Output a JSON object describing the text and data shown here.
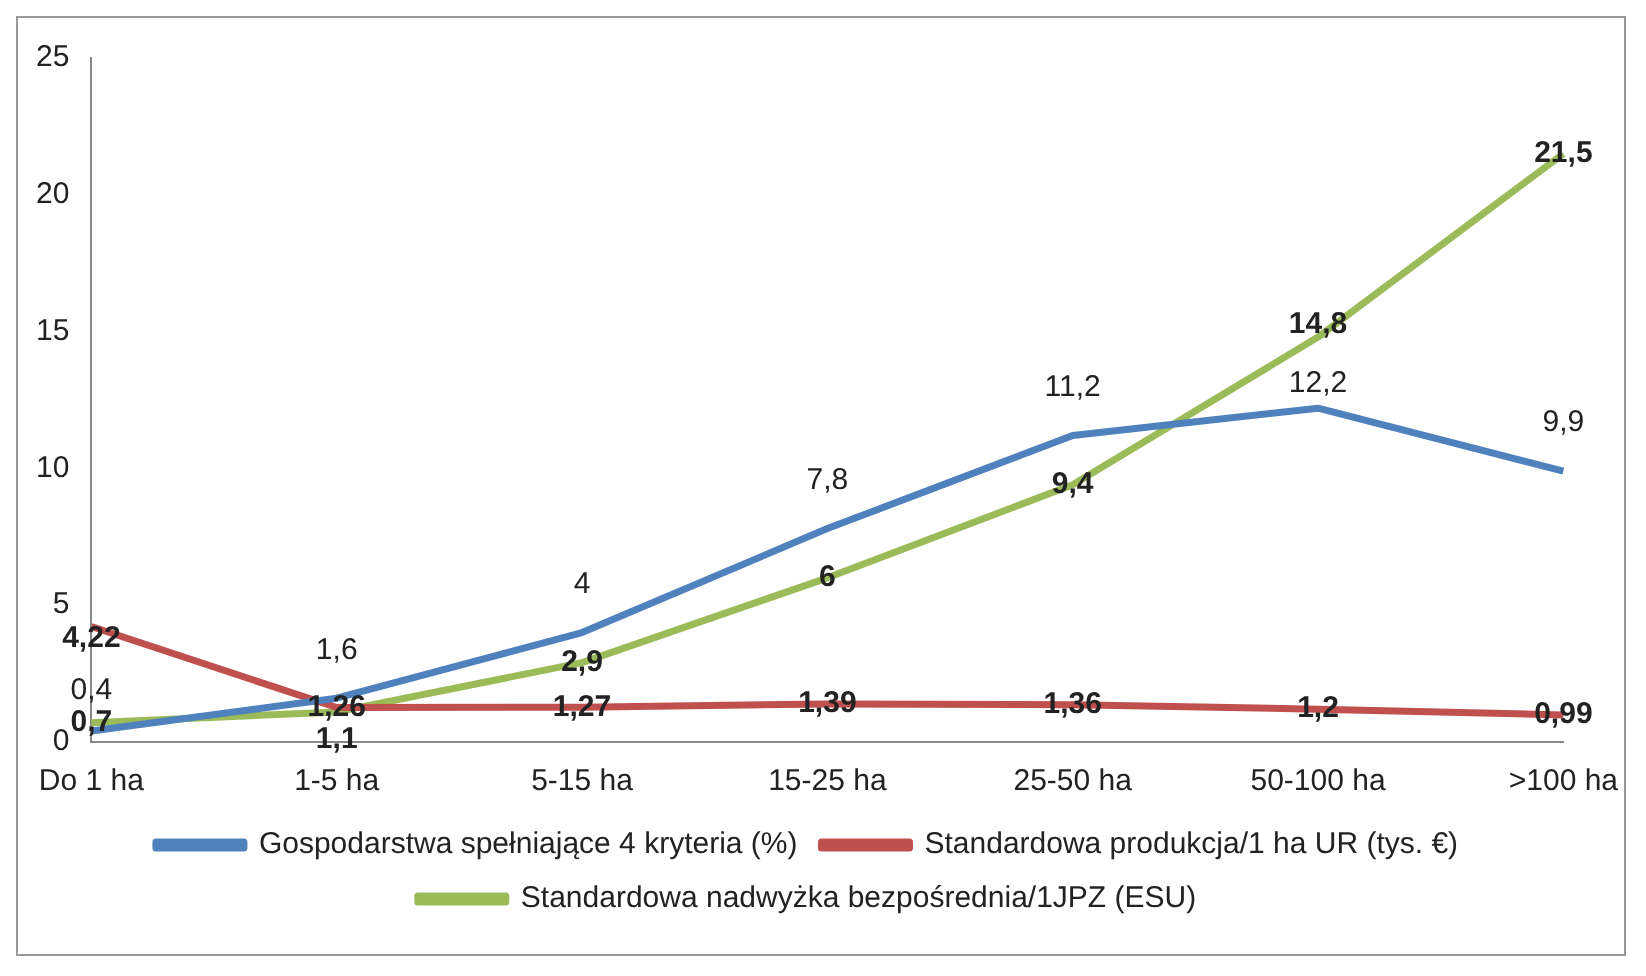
{
  "chart_data": {
    "type": "line",
    "categories": [
      "Do 1 ha",
      "1-5 ha",
      "5-15 ha",
      "15-25 ha",
      "25-50 ha",
      "50-100 ha",
      ">100 ha"
    ],
    "series": [
      {
        "name": "Gospodarstwa spełniające 4 kryteria (%)",
        "color": "#4f81bd",
        "values": [
          0.4,
          1.6,
          4,
          7.8,
          11.2,
          12.2,
          9.9
        ],
        "value_labels": [
          "0,4",
          "1,6",
          "4",
          "7,8",
          "11,2",
          "12,2",
          "9,9"
        ]
      },
      {
        "name": "Standardowa produkcja/1 ha UR (tys. €)",
        "color": "#c0504d",
        "values": [
          4.22,
          1.26,
          1.27,
          1.39,
          1.36,
          1.2,
          0.99
        ],
        "value_labels": [
          "4,22",
          "1,26",
          "1,27",
          "1,39",
          "1,36",
          "1,2",
          "0,99"
        ]
      },
      {
        "name": "Standardowa nadwyżka bezpośrednia/1JPZ (ESU)",
        "color": "#9bbb59",
        "values": [
          0.7,
          1.1,
          2.9,
          6,
          9.4,
          14.8,
          21.5
        ],
        "value_labels": [
          "0,7",
          "1,1",
          "2,9",
          "6",
          "9,4",
          "14,8",
          "21,5"
        ]
      }
    ],
    "ylim": [
      0,
      25
    ],
    "yticks": [
      0,
      5,
      10,
      15,
      20,
      25
    ],
    "grid": false,
    "legend": "bottom",
    "marker": "none",
    "line_style": "solid"
  }
}
